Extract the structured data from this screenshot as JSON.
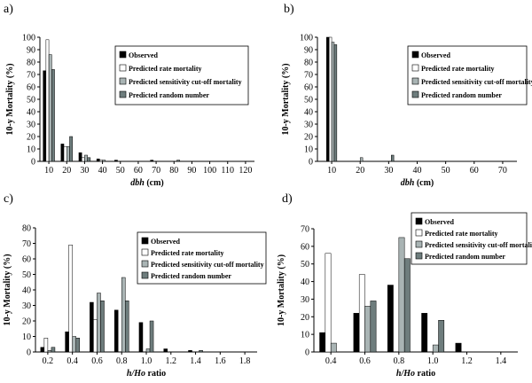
{
  "colors": {
    "observed": "#000000",
    "rate": "#ffffff",
    "cutoff": "#a9b4b4",
    "random": "#6e7d7d"
  },
  "legend_labels": [
    "Observed",
    "Predicted rate mortality",
    "Predicted sensitivity cut-off mortality",
    "Predicted random number"
  ],
  "chart_data": [
    {
      "panel": "a)",
      "type": "bar",
      "ylabel": "10-y Mortality (%)",
      "xlabel_italic": "dbh",
      "xlabel_rest": " (cm)",
      "ylim": [
        0,
        100
      ],
      "yticks": [
        0,
        10,
        20,
        30,
        40,
        50,
        60,
        70,
        80,
        90,
        100
      ],
      "xlim": [
        5,
        125
      ],
      "xticks": [
        10,
        20,
        30,
        40,
        50,
        60,
        70,
        80,
        90,
        100,
        110,
        120
      ],
      "bar_width": 1.6,
      "x": [
        10,
        20,
        30,
        40,
        50,
        60,
        70,
        80,
        90,
        100,
        110,
        120
      ],
      "series": [
        {
          "name": "Observed",
          "values": [
            73,
            14,
            7,
            2,
            1,
            0,
            1,
            0,
            0,
            0,
            0,
            0
          ]
        },
        {
          "name": "Predicted rate mortality",
          "values": [
            98,
            12,
            3,
            1,
            0,
            0,
            0,
            0,
            0,
            0,
            0,
            0
          ]
        },
        {
          "name": "Predicted sensitivity cut-off mortality",
          "values": [
            86,
            12,
            5,
            1,
            0,
            0,
            0,
            0,
            0,
            0,
            0,
            0
          ]
        },
        {
          "name": "Predicted random number",
          "values": [
            74,
            20,
            3,
            0,
            0,
            0,
            0,
            1,
            0,
            0,
            0,
            0
          ]
        }
      ]
    },
    {
      "panel": "b)",
      "type": "bar",
      "ylabel": "10-y Mortality (%)",
      "xlabel_italic": "dbh",
      "xlabel_rest": " (cm)",
      "ylim": [
        0,
        100
      ],
      "yticks": [
        0,
        10,
        20,
        30,
        40,
        50,
        60,
        70,
        80,
        90,
        100
      ],
      "xlim": [
        5,
        75
      ],
      "xticks": [
        10,
        20,
        30,
        40,
        50,
        60,
        70
      ],
      "bar_width": 0.9,
      "x": [
        10,
        20,
        30
      ],
      "series": [
        {
          "name": "Observed",
          "values": [
            100,
            0,
            0
          ]
        },
        {
          "name": "Predicted rate mortality",
          "values": [
            100,
            0,
            0
          ]
        },
        {
          "name": "Predicted sensitivity cut-off mortality",
          "values": [
            96,
            3,
            0
          ]
        },
        {
          "name": "Predicted random number",
          "values": [
            94,
            0,
            5
          ]
        }
      ]
    },
    {
      "panel": "c)",
      "type": "bar",
      "ylabel": "10-y Mortality (%)",
      "xlabel_italic": "h/Ho",
      "xlabel_rest": " ratio",
      "ylim": [
        0,
        80
      ],
      "yticks": [
        0,
        10,
        20,
        30,
        40,
        50,
        60,
        70,
        80
      ],
      "xlim": [
        0.1,
        1.9
      ],
      "xticks": [
        "0.2",
        "0.4",
        "0.6",
        "0.8",
        "1.0",
        "1.2",
        "1.4",
        "1.6",
        "1.8"
      ],
      "bar_width": 0.029,
      "x": [
        0.2,
        0.4,
        0.6,
        0.8,
        1.0,
        1.2,
        1.4
      ],
      "series": [
        {
          "name": "Observed",
          "values": [
            3,
            13,
            32,
            27,
            19,
            2,
            1
          ]
        },
        {
          "name": "Predicted rate mortality",
          "values": [
            9,
            69,
            21,
            0,
            0,
            0,
            0
          ]
        },
        {
          "name": "Predicted sensitivity cut-off mortality",
          "values": [
            1,
            10,
            38,
            48,
            2,
            0,
            0
          ]
        },
        {
          "name": "Predicted random number",
          "values": [
            3,
            9,
            33,
            33,
            20,
            0,
            1
          ]
        }
      ]
    },
    {
      "panel": "d)",
      "type": "bar",
      "ylabel": "10-y Mortality (%)",
      "xlabel_italic": "h/Ho",
      "xlabel_rest": " ratio",
      "ylim": [
        0,
        70
      ],
      "yticks": [
        0,
        10,
        20,
        30,
        40,
        50,
        60,
        70
      ],
      "xlim": [
        0.3,
        1.5
      ],
      "xticks": [
        "0.4",
        "0.6",
        "0.8",
        "1.0",
        "1.2",
        "1.4"
      ],
      "bar_width": 0.033,
      "x": [
        0.4,
        0.6,
        0.8,
        1.0,
        1.2
      ],
      "series": [
        {
          "name": "Observed",
          "values": [
            11,
            22,
            38,
            22,
            5
          ]
        },
        {
          "name": "Predicted rate mortality",
          "values": [
            56,
            44,
            0,
            0,
            0
          ]
        },
        {
          "name": "Predicted sensitivity cut-off mortality",
          "values": [
            5,
            26,
            65,
            4,
            0
          ]
        },
        {
          "name": "Predicted random number",
          "values": [
            0,
            29,
            53,
            18,
            0
          ]
        }
      ]
    }
  ]
}
